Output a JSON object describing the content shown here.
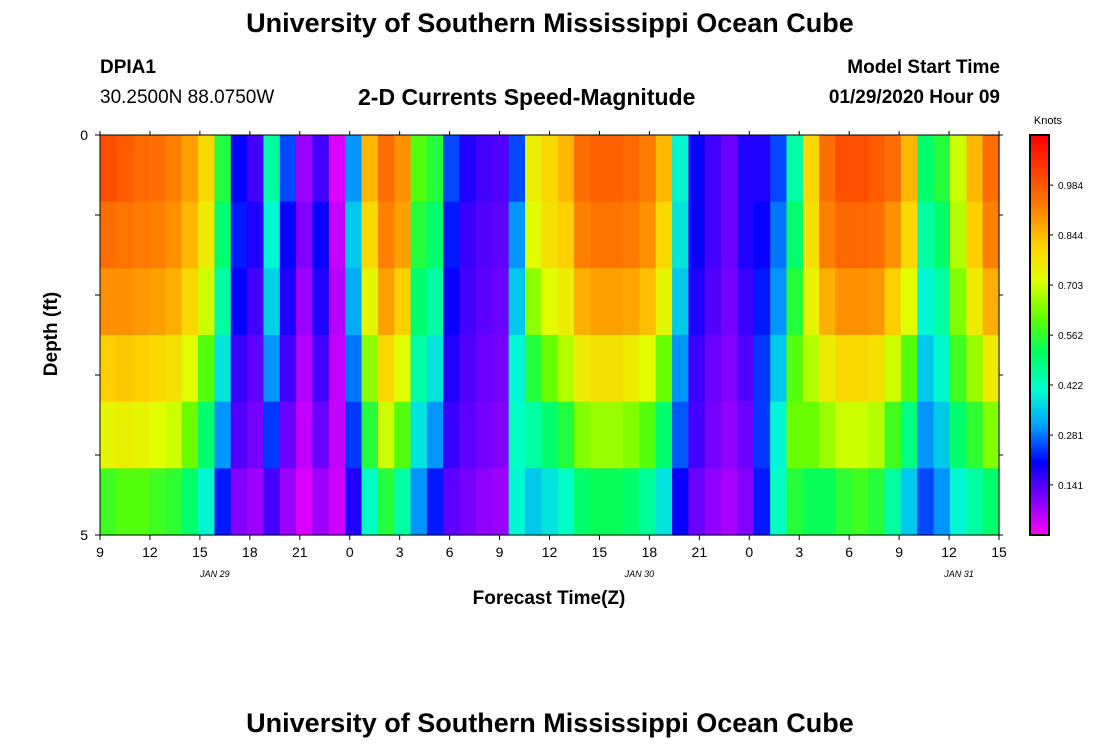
{
  "page": {
    "title_top": "University of Southern Mississippi Ocean Cube",
    "title_bottom": "University of Southern Mississippi Ocean Cube",
    "station_id": "DPIA1",
    "coordinates": "30.2500N 88.0750W",
    "plot_title": "2-D Currents Speed-Magnitude",
    "model_start_label": "Model Start Time",
    "model_start_value": "01/29/2020 Hour 09"
  },
  "chart_data": {
    "type": "heatmap",
    "title": "2-D Currents Speed-Magnitude",
    "xlabel": "Forecast Time(Z)",
    "ylabel": "Depth (ft)",
    "x_tick_labels": [
      "9",
      "12",
      "15",
      "18",
      "21",
      "0",
      "3",
      "6",
      "9",
      "12",
      "15",
      "18",
      "21",
      "0",
      "3",
      "6",
      "9",
      "12",
      "15"
    ],
    "date_labels": [
      {
        "text": "JAN  29",
        "at_tick": 2.3
      },
      {
        "text": "JAN  30",
        "at_tick": 10.8
      },
      {
        "text": "JAN  31",
        "at_tick": 17.2
      }
    ],
    "y_tick_labels": [
      "0",
      "5"
    ],
    "ylim": [
      0,
      5
    ],
    "colorbar": {
      "title": "Knots",
      "ticks": [
        "0.984",
        "0.844",
        "0.703",
        "0.562",
        "0.422",
        "0.281",
        "0.141"
      ],
      "range": [
        0,
        1.125
      ],
      "colors": [
        "#ff00ff",
        "#8000ff",
        "#0000ff",
        "#00a0ff",
        "#00ffd0",
        "#00ff60",
        "#60ff00",
        "#e0ff00",
        "#ffd000",
        "#ff8000",
        "#ff4000",
        "#ff0000"
      ]
    },
    "hours": 55,
    "depth_levels": [
      0,
      1,
      2,
      3,
      4,
      5
    ],
    "rows": [
      [
        1.0,
        0.98,
        0.96,
        0.95,
        0.92,
        0.88,
        0.8,
        0.55,
        0.2,
        0.15,
        0.45,
        0.25,
        0.08,
        0.15,
        0.03,
        0.3,
        0.85,
        0.95,
        0.9,
        0.6,
        0.55,
        0.25,
        0.18,
        0.15,
        0.14,
        0.25,
        0.75,
        0.8,
        0.85,
        0.95,
        0.97,
        0.97,
        0.96,
        0.93,
        0.85,
        0.4,
        0.2,
        0.15,
        0.12,
        0.18,
        0.18,
        0.25,
        0.45,
        0.8,
        0.95,
        1.0,
        1.0,
        0.98,
        0.95,
        0.85,
        0.5,
        0.55,
        0.7,
        0.85,
        0.95
      ],
      [
        0.95,
        0.94,
        0.93,
        0.92,
        0.9,
        0.85,
        0.76,
        0.5,
        0.22,
        0.18,
        0.4,
        0.2,
        0.1,
        0.2,
        0.05,
        0.35,
        0.8,
        0.92,
        0.88,
        0.55,
        0.5,
        0.22,
        0.16,
        0.14,
        0.13,
        0.3,
        0.72,
        0.78,
        0.82,
        0.92,
        0.94,
        0.94,
        0.93,
        0.9,
        0.8,
        0.38,
        0.2,
        0.15,
        0.12,
        0.18,
        0.2,
        0.28,
        0.5,
        0.78,
        0.92,
        0.96,
        0.96,
        0.95,
        0.9,
        0.8,
        0.45,
        0.5,
        0.68,
        0.82,
        0.92
      ],
      [
        0.9,
        0.9,
        0.89,
        0.88,
        0.86,
        0.8,
        0.7,
        0.45,
        0.2,
        0.15,
        0.36,
        0.18,
        0.08,
        0.18,
        0.06,
        0.32,
        0.74,
        0.88,
        0.82,
        0.5,
        0.45,
        0.2,
        0.15,
        0.13,
        0.12,
        0.35,
        0.65,
        0.72,
        0.76,
        0.86,
        0.88,
        0.88,
        0.87,
        0.84,
        0.74,
        0.35,
        0.18,
        0.14,
        0.11,
        0.16,
        0.22,
        0.3,
        0.55,
        0.74,
        0.86,
        0.9,
        0.9,
        0.89,
        0.82,
        0.72,
        0.4,
        0.45,
        0.64,
        0.76,
        0.86
      ],
      [
        0.82,
        0.83,
        0.82,
        0.8,
        0.78,
        0.72,
        0.6,
        0.38,
        0.16,
        0.13,
        0.3,
        0.15,
        0.06,
        0.15,
        0.05,
        0.28,
        0.65,
        0.8,
        0.72,
        0.45,
        0.38,
        0.18,
        0.14,
        0.12,
        0.11,
        0.4,
        0.55,
        0.62,
        0.68,
        0.76,
        0.78,
        0.78,
        0.76,
        0.72,
        0.62,
        0.3,
        0.16,
        0.12,
        0.1,
        0.14,
        0.24,
        0.35,
        0.6,
        0.68,
        0.76,
        0.8,
        0.8,
        0.78,
        0.7,
        0.6,
        0.35,
        0.4,
        0.58,
        0.66,
        0.76
      ],
      [
        0.74,
        0.75,
        0.74,
        0.72,
        0.7,
        0.62,
        0.5,
        0.3,
        0.14,
        0.11,
        0.24,
        0.12,
        0.05,
        0.12,
        0.05,
        0.24,
        0.55,
        0.7,
        0.6,
        0.38,
        0.3,
        0.16,
        0.13,
        0.11,
        0.1,
        0.42,
        0.45,
        0.5,
        0.55,
        0.64,
        0.66,
        0.66,
        0.64,
        0.6,
        0.5,
        0.26,
        0.15,
        0.11,
        0.09,
        0.12,
        0.24,
        0.4,
        0.62,
        0.62,
        0.66,
        0.7,
        0.7,
        0.68,
        0.58,
        0.48,
        0.3,
        0.35,
        0.5,
        0.56,
        0.64
      ],
      [
        0.58,
        0.6,
        0.6,
        0.58,
        0.56,
        0.5,
        0.4,
        0.22,
        0.1,
        0.08,
        0.15,
        0.08,
        0.03,
        0.08,
        0.04,
        0.18,
        0.42,
        0.55,
        0.45,
        0.3,
        0.22,
        0.13,
        0.11,
        0.09,
        0.08,
        0.4,
        0.35,
        0.38,
        0.42,
        0.5,
        0.52,
        0.52,
        0.5,
        0.46,
        0.38,
        0.2,
        0.12,
        0.09,
        0.07,
        0.1,
        0.22,
        0.42,
        0.55,
        0.52,
        0.52,
        0.56,
        0.58,
        0.55,
        0.45,
        0.35,
        0.25,
        0.3,
        0.4,
        0.45,
        0.5
      ]
    ]
  }
}
